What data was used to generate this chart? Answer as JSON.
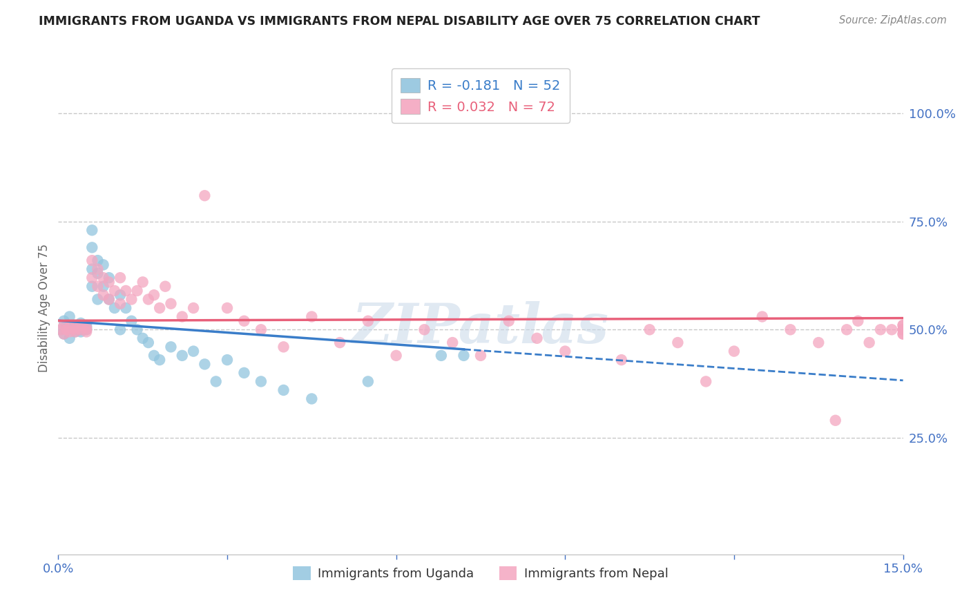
{
  "title": "IMMIGRANTS FROM UGANDA VS IMMIGRANTS FROM NEPAL DISABILITY AGE OVER 75 CORRELATION CHART",
  "source": "Source: ZipAtlas.com",
  "ylabel": "Disability Age Over 75",
  "xlim": [
    0.0,
    0.15
  ],
  "ylim": [
    -0.02,
    1.12
  ],
  "uganda_R": -0.181,
  "uganda_N": 52,
  "nepal_R": 0.032,
  "nepal_N": 72,
  "uganda_color": "#92c5de",
  "nepal_color": "#f4a6c0",
  "uganda_line_color": "#3a7dc9",
  "nepal_line_color": "#e8607a",
  "background_color": "#ffffff",
  "grid_color": "#c8c8c8",
  "right_axis_color": "#4472c4",
  "watermark": "ZIPatlas",
  "uganda_x": [
    0.0005,
    0.001,
    0.001,
    0.0015,
    0.002,
    0.002,
    0.0025,
    0.003,
    0.003,
    0.003,
    0.003,
    0.004,
    0.004,
    0.004,
    0.004,
    0.005,
    0.005,
    0.005,
    0.006,
    0.006,
    0.006,
    0.006,
    0.007,
    0.007,
    0.007,
    0.008,
    0.008,
    0.009,
    0.009,
    0.01,
    0.011,
    0.011,
    0.012,
    0.013,
    0.014,
    0.015,
    0.016,
    0.017,
    0.018,
    0.02,
    0.022,
    0.024,
    0.026,
    0.028,
    0.03,
    0.033,
    0.036,
    0.04,
    0.045,
    0.055,
    0.068,
    0.072
  ],
  "uganda_y": [
    0.5,
    0.49,
    0.52,
    0.51,
    0.48,
    0.53,
    0.505,
    0.5,
    0.51,
    0.495,
    0.505,
    0.5,
    0.515,
    0.495,
    0.505,
    0.51,
    0.5,
    0.505,
    0.6,
    0.64,
    0.69,
    0.73,
    0.57,
    0.63,
    0.66,
    0.6,
    0.65,
    0.57,
    0.62,
    0.55,
    0.58,
    0.5,
    0.55,
    0.52,
    0.5,
    0.48,
    0.47,
    0.44,
    0.43,
    0.46,
    0.44,
    0.45,
    0.42,
    0.38,
    0.43,
    0.4,
    0.38,
    0.36,
    0.34,
    0.38,
    0.44,
    0.44
  ],
  "nepal_x": [
    0.0005,
    0.001,
    0.001,
    0.0015,
    0.002,
    0.002,
    0.003,
    0.003,
    0.003,
    0.004,
    0.004,
    0.005,
    0.005,
    0.005,
    0.006,
    0.006,
    0.007,
    0.007,
    0.008,
    0.008,
    0.009,
    0.009,
    0.01,
    0.011,
    0.011,
    0.012,
    0.013,
    0.014,
    0.015,
    0.016,
    0.017,
    0.018,
    0.019,
    0.02,
    0.022,
    0.024,
    0.026,
    0.03,
    0.033,
    0.036,
    0.04,
    0.045,
    0.05,
    0.055,
    0.06,
    0.065,
    0.07,
    0.075,
    0.08,
    0.085,
    0.09,
    0.1,
    0.105,
    0.11,
    0.115,
    0.12,
    0.125,
    0.13,
    0.135,
    0.138,
    0.14,
    0.142,
    0.144,
    0.146,
    0.148,
    0.15,
    0.15,
    0.15,
    0.15,
    0.15,
    0.15,
    0.15
  ],
  "nepal_y": [
    0.5,
    0.49,
    0.51,
    0.5,
    0.495,
    0.505,
    0.5,
    0.505,
    0.495,
    0.51,
    0.5,
    0.505,
    0.5,
    0.495,
    0.62,
    0.66,
    0.6,
    0.64,
    0.58,
    0.62,
    0.57,
    0.61,
    0.59,
    0.56,
    0.62,
    0.59,
    0.57,
    0.59,
    0.61,
    0.57,
    0.58,
    0.55,
    0.6,
    0.56,
    0.53,
    0.55,
    0.81,
    0.55,
    0.52,
    0.5,
    0.46,
    0.53,
    0.47,
    0.52,
    0.44,
    0.5,
    0.47,
    0.44,
    0.52,
    0.48,
    0.45,
    0.43,
    0.5,
    0.47,
    0.38,
    0.45,
    0.53,
    0.5,
    0.47,
    0.29,
    0.5,
    0.52,
    0.47,
    0.5,
    0.5,
    0.51,
    0.49,
    0.5,
    0.49,
    0.51,
    0.5,
    0.5
  ]
}
